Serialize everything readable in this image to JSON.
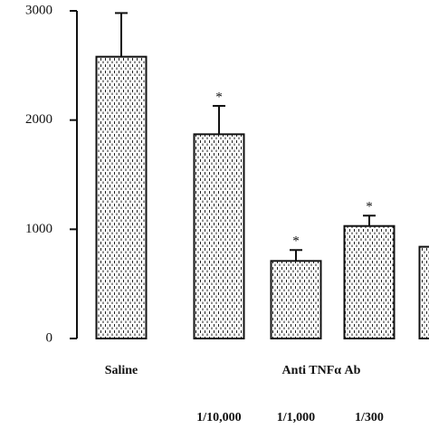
{
  "chart_data": {
    "type": "bar",
    "categories": [
      "Saline",
      "1/10,000",
      "1/1,000",
      "1/300",
      null
    ],
    "group_label": "Anti TNFα Ab",
    "values": [
      2580,
      1870,
      710,
      1030,
      840
    ],
    "errors": [
      400,
      260,
      100,
      95,
      null
    ],
    "significance": [
      null,
      "*",
      "*",
      "*",
      null
    ],
    "color": "#ffffff",
    "ylim": [
      0,
      3000
    ],
    "yticks": [
      0,
      1000,
      2000,
      3000
    ],
    "grid": false
  }
}
